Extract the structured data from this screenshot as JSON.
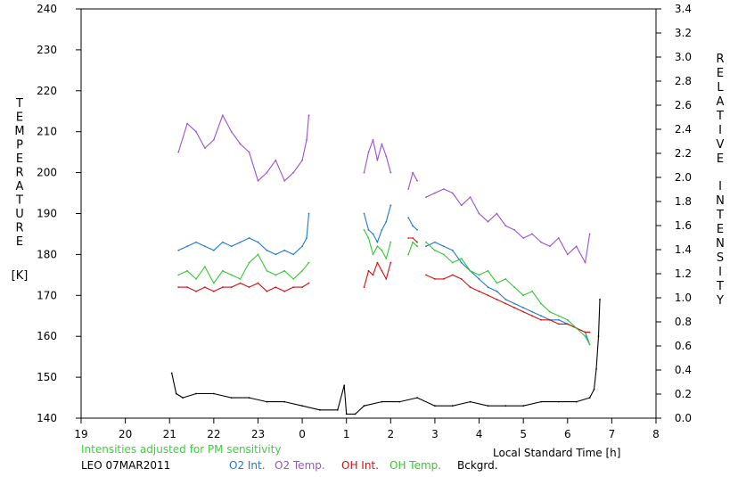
{
  "chart_data": {
    "type": "line",
    "title": "",
    "xlabel": "Local Standard Time [h]",
    "ylabel_left": "TEMPERATURE [K]",
    "ylabel_right": "RELATIVE INTENSITY",
    "x_ticks": [
      "19",
      "20",
      "21",
      "22",
      "23",
      "0",
      "1",
      "2",
      "3",
      "4",
      "5",
      "6",
      "7",
      "8"
    ],
    "xlim": [
      19,
      32
    ],
    "y_left_ticks": [
      "140",
      "150",
      "160",
      "170",
      "180",
      "190",
      "200",
      "210",
      "220",
      "230",
      "240"
    ],
    "ylim_left": [
      140,
      240
    ],
    "y_right_ticks": [
      "0.0",
      "0.2",
      "0.4",
      "0.6",
      "0.8",
      "1.0",
      "1.2",
      "1.4",
      "1.6",
      "1.8",
      "2.0",
      "2.2",
      "2.4",
      "2.6",
      "2.8",
      "3.0",
      "3.2",
      "3.4"
    ],
    "ylim_right": [
      0,
      3.4
    ],
    "x_unit_note": "x in hours since 19:00 local time axis start; values > 24 denote after midnight",
    "annotation": "Intensities adjusted for PM sensitivity",
    "station_date": "LEO 07MAR2011",
    "legend_position": "bottom",
    "series": [
      {
        "name": "O2 Int.",
        "color": "#1f78d0",
        "axis": "left",
        "segments": [
          [
            [
              21.2,
              181
            ],
            [
              21.4,
              182
            ],
            [
              21.6,
              183
            ],
            [
              21.8,
              182
            ],
            [
              22.0,
              181
            ],
            [
              22.2,
              183
            ],
            [
              22.4,
              182
            ],
            [
              22.6,
              183
            ],
            [
              22.8,
              184
            ],
            [
              23.0,
              183
            ],
            [
              23.2,
              181
            ],
            [
              23.4,
              180
            ],
            [
              23.6,
              181
            ],
            [
              23.8,
              180
            ],
            [
              24.0,
              182
            ],
            [
              24.1,
              184
            ],
            [
              24.15,
              190
            ]
          ],
          [
            [
              25.4,
              190
            ],
            [
              25.5,
              186
            ],
            [
              25.6,
              185
            ],
            [
              25.7,
              183
            ],
            [
              25.8,
              186
            ],
            [
              25.9,
              188
            ],
            [
              26.0,
              192
            ]
          ],
          [
            [
              26.4,
              189
            ],
            [
              26.5,
              187
            ],
            [
              26.6,
              186
            ]
          ],
          [
            [
              26.8,
              182
            ],
            [
              27.0,
              183
            ],
            [
              27.2,
              182
            ],
            [
              27.4,
              181
            ],
            [
              27.6,
              178
            ],
            [
              27.8,
              176
            ],
            [
              28.0,
              174
            ],
            [
              28.2,
              172
            ],
            [
              28.4,
              171
            ],
            [
              28.6,
              169
            ],
            [
              28.8,
              168
            ],
            [
              29.0,
              167
            ],
            [
              29.2,
              166
            ],
            [
              29.4,
              165
            ],
            [
              29.6,
              164
            ],
            [
              29.8,
              164
            ],
            [
              30.0,
              163
            ],
            [
              30.2,
              162
            ],
            [
              30.4,
              161
            ],
            [
              30.5,
              158
            ]
          ]
        ]
      },
      {
        "name": "O2 Temp.",
        "color": "#9a4fd6",
        "axis": "left",
        "segments": [
          [
            [
              21.2,
              205
            ],
            [
              21.4,
              212
            ],
            [
              21.6,
              210
            ],
            [
              21.8,
              206
            ],
            [
              22.0,
              208
            ],
            [
              22.2,
              214
            ],
            [
              22.4,
              210
            ],
            [
              22.6,
              207
            ],
            [
              22.8,
              205
            ],
            [
              23.0,
              198
            ],
            [
              23.2,
              200
            ],
            [
              23.4,
              203
            ],
            [
              23.6,
              198
            ],
            [
              23.8,
              200
            ],
            [
              24.0,
              203
            ],
            [
              24.1,
              208
            ],
            [
              24.15,
              214
            ]
          ],
          [
            [
              25.4,
              200
            ],
            [
              25.5,
              205
            ],
            [
              25.6,
              208
            ],
            [
              25.7,
              203
            ],
            [
              25.8,
              207
            ],
            [
              25.9,
              204
            ],
            [
              26.0,
              200
            ]
          ],
          [
            [
              26.4,
              196
            ],
            [
              26.5,
              200
            ],
            [
              26.6,
              198
            ]
          ],
          [
            [
              26.8,
              194
            ],
            [
              27.0,
              195
            ],
            [
              27.2,
              196
            ],
            [
              27.4,
              195
            ],
            [
              27.6,
              192
            ],
            [
              27.8,
              194
            ],
            [
              28.0,
              190
            ],
            [
              28.2,
              188
            ],
            [
              28.4,
              190
            ],
            [
              28.6,
              187
            ],
            [
              28.8,
              186
            ],
            [
              29.0,
              184
            ],
            [
              29.2,
              185
            ],
            [
              29.4,
              183
            ],
            [
              29.6,
              182
            ],
            [
              29.8,
              184
            ],
            [
              30.0,
              180
            ],
            [
              30.2,
              182
            ],
            [
              30.4,
              178
            ],
            [
              30.5,
              185
            ]
          ]
        ]
      },
      {
        "name": "OH Int.",
        "color": "#d01010",
        "axis": "left",
        "segments": [
          [
            [
              21.2,
              172
            ],
            [
              21.4,
              172
            ],
            [
              21.6,
              171
            ],
            [
              21.8,
              172
            ],
            [
              22.0,
              171
            ],
            [
              22.2,
              172
            ],
            [
              22.4,
              172
            ],
            [
              22.6,
              173
            ],
            [
              22.8,
              172
            ],
            [
              23.0,
              173
            ],
            [
              23.2,
              171
            ],
            [
              23.4,
              172
            ],
            [
              23.6,
              171
            ],
            [
              23.8,
              172
            ],
            [
              24.0,
              172
            ],
            [
              24.15,
              173
            ]
          ],
          [
            [
              25.4,
              172
            ],
            [
              25.5,
              176
            ],
            [
              25.6,
              175
            ],
            [
              25.7,
              178
            ],
            [
              25.8,
              176
            ],
            [
              25.9,
              174
            ],
            [
              26.0,
              178
            ]
          ],
          [
            [
              26.4,
              184
            ],
            [
              26.5,
              184
            ],
            [
              26.6,
              183
            ]
          ],
          [
            [
              26.8,
              175
            ],
            [
              27.0,
              174
            ],
            [
              27.2,
              174
            ],
            [
              27.4,
              175
            ],
            [
              27.6,
              174
            ],
            [
              27.8,
              172
            ],
            [
              28.0,
              171
            ],
            [
              28.2,
              170
            ],
            [
              28.4,
              169
            ],
            [
              28.6,
              168
            ],
            [
              28.8,
              167
            ],
            [
              29.0,
              166
            ],
            [
              29.2,
              165
            ],
            [
              29.4,
              164
            ],
            [
              29.6,
              164
            ],
            [
              29.8,
              163
            ],
            [
              30.0,
              163
            ],
            [
              30.2,
              162
            ],
            [
              30.4,
              161
            ],
            [
              30.5,
              161
            ]
          ]
        ]
      },
      {
        "name": "OH Temp.",
        "color": "#34c834",
        "axis": "left",
        "segments": [
          [
            [
              21.2,
              175
            ],
            [
              21.4,
              176
            ],
            [
              21.6,
              174
            ],
            [
              21.8,
              177
            ],
            [
              22.0,
              173
            ],
            [
              22.2,
              176
            ],
            [
              22.4,
              175
            ],
            [
              22.6,
              174
            ],
            [
              22.8,
              178
            ],
            [
              23.0,
              180
            ],
            [
              23.2,
              176
            ],
            [
              23.4,
              175
            ],
            [
              23.6,
              176
            ],
            [
              23.8,
              174
            ],
            [
              24.0,
              176
            ],
            [
              24.15,
              178
            ]
          ],
          [
            [
              25.4,
              186
            ],
            [
              25.5,
              184
            ],
            [
              25.6,
              180
            ],
            [
              25.7,
              182
            ],
            [
              25.8,
              181
            ],
            [
              25.9,
              179
            ],
            [
              26.0,
              183
            ]
          ],
          [
            [
              26.4,
              180
            ],
            [
              26.5,
              183
            ],
            [
              26.6,
              182
            ]
          ],
          [
            [
              26.8,
              183
            ],
            [
              27.0,
              181
            ],
            [
              27.2,
              180
            ],
            [
              27.4,
              178
            ],
            [
              27.6,
              179
            ],
            [
              27.8,
              176
            ],
            [
              28.0,
              175
            ],
            [
              28.2,
              176
            ],
            [
              28.4,
              173
            ],
            [
              28.6,
              174
            ],
            [
              28.8,
              172
            ],
            [
              29.0,
              170
            ],
            [
              29.2,
              171
            ],
            [
              29.4,
              168
            ],
            [
              29.6,
              166
            ],
            [
              29.8,
              165
            ],
            [
              30.0,
              164
            ],
            [
              30.2,
              162
            ],
            [
              30.4,
              160
            ],
            [
              30.5,
              158
            ]
          ]
        ]
      },
      {
        "name": "Bckgrd.",
        "color": "#000000",
        "axis": "left",
        "segments": [
          [
            [
              21.05,
              151
            ],
            [
              21.15,
              146
            ],
            [
              21.3,
              145
            ],
            [
              21.6,
              146
            ],
            [
              22.0,
              146
            ],
            [
              22.4,
              145
            ],
            [
              22.8,
              145
            ],
            [
              23.2,
              144
            ],
            [
              23.6,
              144
            ],
            [
              24.0,
              143
            ],
            [
              24.4,
              142
            ],
            [
              24.8,
              142
            ],
            [
              24.95,
              148
            ],
            [
              25.0,
              141
            ],
            [
              25.2,
              141
            ],
            [
              25.4,
              143
            ],
            [
              25.8,
              144
            ],
            [
              26.2,
              144
            ],
            [
              26.6,
              145
            ],
            [
              27.0,
              143
            ],
            [
              27.4,
              143
            ],
            [
              27.8,
              144
            ],
            [
              28.2,
              143
            ],
            [
              28.6,
              143
            ],
            [
              29.0,
              143
            ],
            [
              29.4,
              144
            ],
            [
              29.8,
              144
            ],
            [
              30.2,
              144
            ],
            [
              30.5,
              145
            ],
            [
              30.6,
              147
            ],
            [
              30.65,
              152
            ],
            [
              30.7,
              160
            ],
            [
              30.73,
              169
            ]
          ]
        ]
      }
    ]
  }
}
